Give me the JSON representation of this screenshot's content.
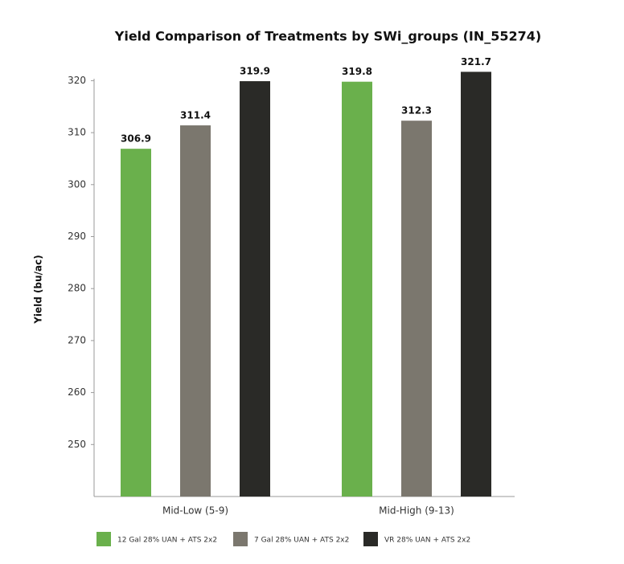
{
  "chart_data": {
    "type": "bar",
    "title": "Yield Comparison of Treatments by SWi_groups (IN_55274)",
    "y_label": "Yield (bu/ac)",
    "categories": [
      "Mid-Low (5-9)",
      "Mid-High (9-13)"
    ],
    "series": [
      {
        "name": "12 Gal 28% UAN + ATS 2x2",
        "color": "#6ab04c",
        "values": [
          306.9,
          319.8
        ]
      },
      {
        "name": "7 Gal 28% UAN + ATS 2x2",
        "color": "#7b776e",
        "values": [
          311.4,
          312.3
        ]
      },
      {
        "name": "VR 28% UAN + ATS 2x2",
        "color": "#2a2a27",
        "values": [
          319.9,
          321.7
        ]
      }
    ],
    "ylim": [
      240,
      320
    ],
    "yticks": [
      250,
      260,
      270,
      280,
      290,
      300,
      310,
      320
    ],
    "legend": "bottom"
  }
}
